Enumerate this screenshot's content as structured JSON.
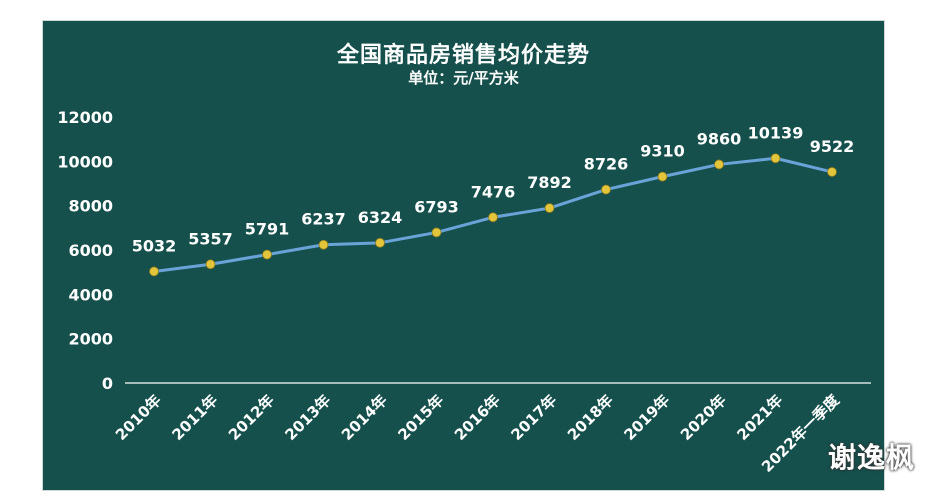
{
  "chart_data": {
    "type": "line",
    "title": "全国商品房销售均价走势",
    "subtitle": "单位：元/平方米",
    "xlabel": "",
    "ylabel": "",
    "categories": [
      "2010年",
      "2011年",
      "2012年",
      "2013年",
      "2014年",
      "2015年",
      "2016年",
      "2017年",
      "2018年",
      "2019年",
      "2020年",
      "2021年",
      "2022年一季度"
    ],
    "series": [
      {
        "values": [
          5032,
          5357,
          5791,
          6237,
          6324,
          6793,
          7476,
          7892,
          8726,
          9310,
          9860,
          10139,
          9522
        ]
      }
    ],
    "ylim": [
      0,
      12000
    ],
    "yticks": [
      0,
      2000,
      4000,
      6000,
      8000,
      10000,
      12000
    ],
    "grid": false,
    "legend": "none",
    "colors": {
      "background": "#15504c",
      "line": "#6aa3d8",
      "marker": "#e2c53a",
      "text": "#ffffff"
    }
  },
  "watermark": "谢逸枫"
}
